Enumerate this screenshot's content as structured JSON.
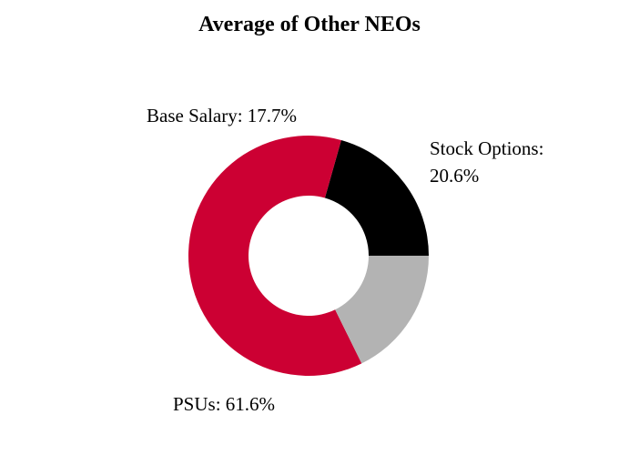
{
  "chart_data": {
    "type": "pie",
    "title": "Average of Other NEOs",
    "slices": [
      {
        "name": "Stock Options",
        "value": 20.6,
        "color": "#000000",
        "label_lines": [
          "Stock Options:",
          "20.6%"
        ]
      },
      {
        "name": "PSUs",
        "value": 61.6,
        "color": "#cc0033",
        "label_lines": [
          "PSUs: 61.6%"
        ]
      },
      {
        "name": "Base Salary",
        "value": 17.7,
        "color": "#b3b3b3",
        "label_lines": [
          "Base Salary: 17.7%"
        ]
      }
    ],
    "donut": true,
    "legend": "none"
  }
}
